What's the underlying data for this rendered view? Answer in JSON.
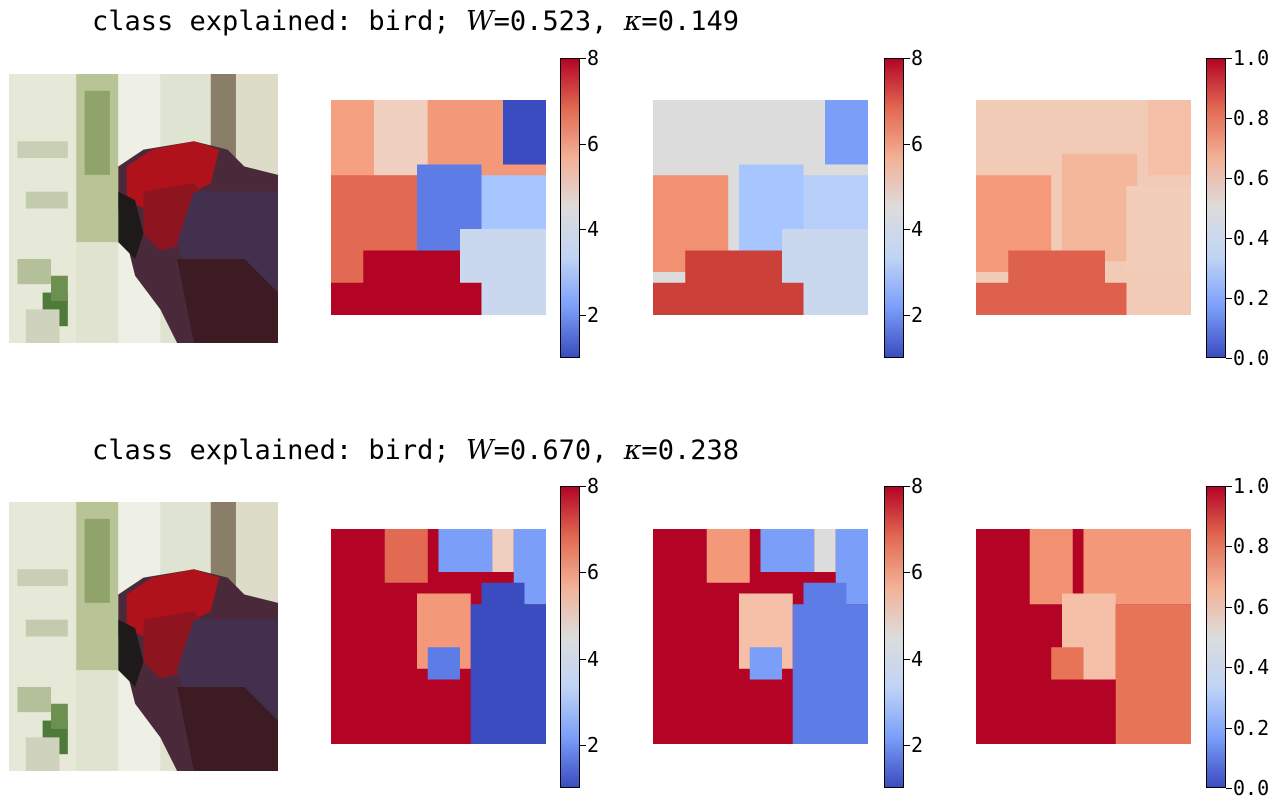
{
  "rows": [
    {
      "title_prefix": "class explained: bird; ",
      "w_symbol": "W",
      "w_value": "0.523",
      "kappa_symbol": "κ",
      "kappa_value": "0.149",
      "colorbars": [
        {
          "min": 1,
          "max": 8,
          "ticks": [
            {
              "v": 2,
              "label": "2"
            },
            {
              "v": 4,
              "label": "4"
            },
            {
              "v": 6,
              "label": "6"
            },
            {
              "v": 8,
              "label": "8"
            }
          ]
        },
        {
          "min": 1,
          "max": 8,
          "ticks": [
            {
              "v": 2,
              "label": "2"
            },
            {
              "v": 4,
              "label": "4"
            },
            {
              "v": 6,
              "label": "6"
            },
            {
              "v": 8,
              "label": "8"
            }
          ]
        },
        {
          "min": 0,
          "max": 1,
          "ticks": [
            {
              "v": 0,
              "label": "0.0"
            },
            {
              "v": 0.2,
              "label": "0.2"
            },
            {
              "v": 0.4,
              "label": "0.4"
            },
            {
              "v": 0.6,
              "label": "0.6"
            },
            {
              "v": 0.8,
              "label": "0.8"
            },
            {
              "v": 1,
              "label": "1.0"
            }
          ]
        }
      ]
    },
    {
      "title_prefix": "class explained: bird; ",
      "w_symbol": "W",
      "w_value": "0.670",
      "kappa_symbol": "κ",
      "kappa_value": "0.238",
      "colorbars": [
        {
          "min": 1,
          "max": 8,
          "ticks": [
            {
              "v": 2,
              "label": "2"
            },
            {
              "v": 4,
              "label": "4"
            },
            {
              "v": 6,
              "label": "6"
            },
            {
              "v": 8,
              "label": "8"
            }
          ]
        },
        {
          "min": 1,
          "max": 8,
          "ticks": [
            {
              "v": 2,
              "label": "2"
            },
            {
              "v": 4,
              "label": "4"
            },
            {
              "v": 6,
              "label": "6"
            },
            {
              "v": 8,
              "label": "8"
            }
          ]
        },
        {
          "min": 0,
          "max": 1,
          "ticks": [
            {
              "v": 0,
              "label": "0.0"
            },
            {
              "v": 0.2,
              "label": "0.2"
            },
            {
              "v": 0.4,
              "label": "0.4"
            },
            {
              "v": 0.6,
              "label": "0.6"
            },
            {
              "v": 0.8,
              "label": "0.8"
            },
            {
              "v": 1,
              "label": "1.0"
            }
          ]
        }
      ]
    }
  ],
  "colors": {
    "colormap": "coolwarm",
    "deep_red": "#b40426",
    "deep_blue": "#3b4cc0",
    "neutral": "#dddcdc"
  }
}
